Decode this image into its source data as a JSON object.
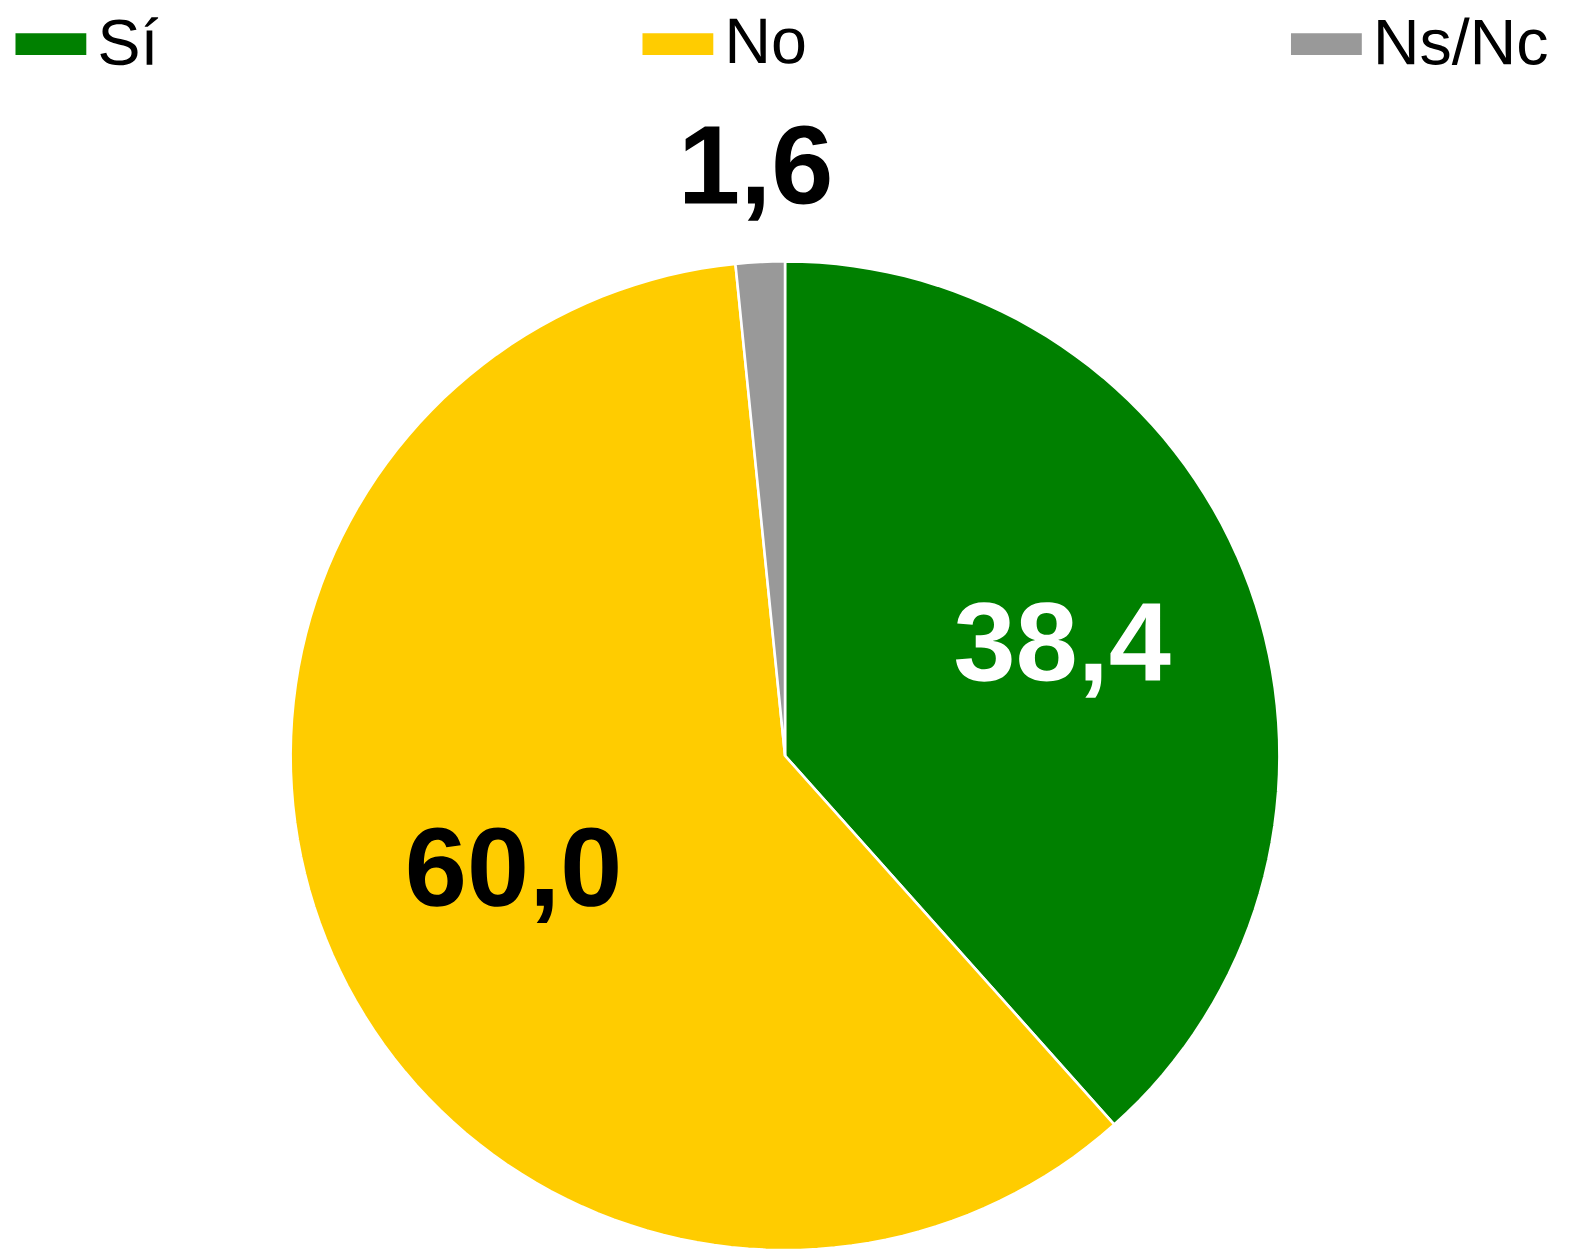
{
  "chart_data": {
    "type": "pie",
    "categories": [
      "Sí",
      "No",
      "Ns/Nc"
    ],
    "values": [
      38.4,
      60.0,
      1.6
    ],
    "colors": [
      "#008000",
      "#ffcc00",
      "#999999"
    ],
    "value_labels": [
      "38,4",
      "60,0",
      "1,6"
    ],
    "legend": "top"
  }
}
